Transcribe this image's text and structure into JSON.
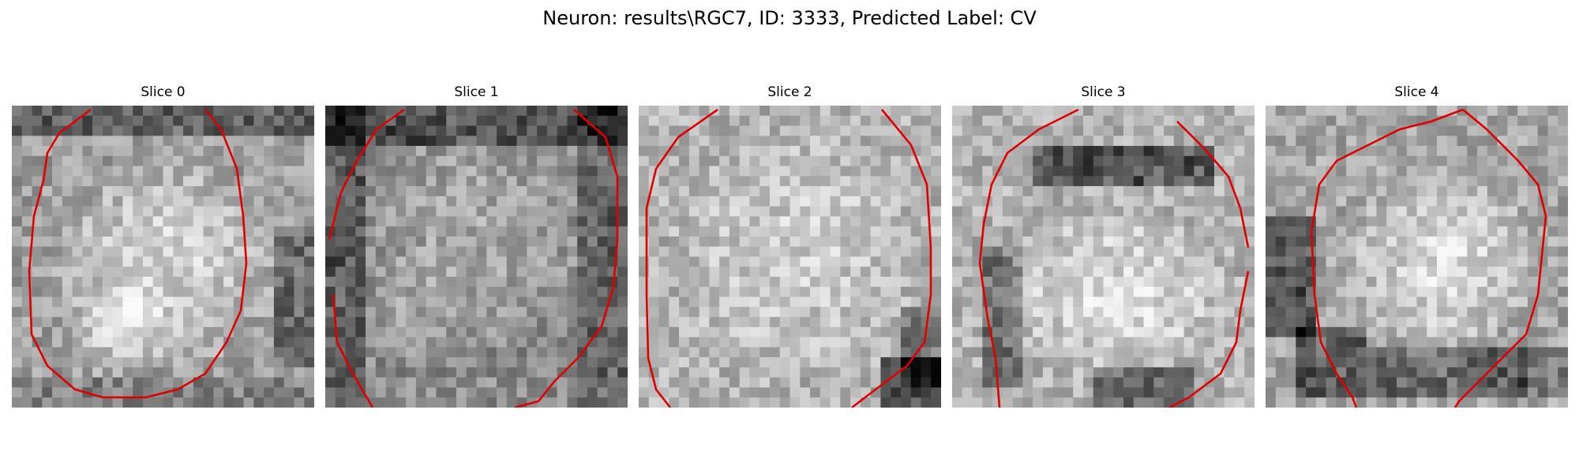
{
  "figure": {
    "title": "Neuron: results\\RGC7, ID: 3333, Predicted Label: CV",
    "contour_color": "#e00000",
    "colormap": "gray"
  },
  "slices": [
    {
      "label": "Slice 0"
    },
    {
      "label": "Slice 1"
    },
    {
      "label": "Slice 2"
    },
    {
      "label": "Slice 3"
    },
    {
      "label": "Slice 4"
    }
  ]
}
